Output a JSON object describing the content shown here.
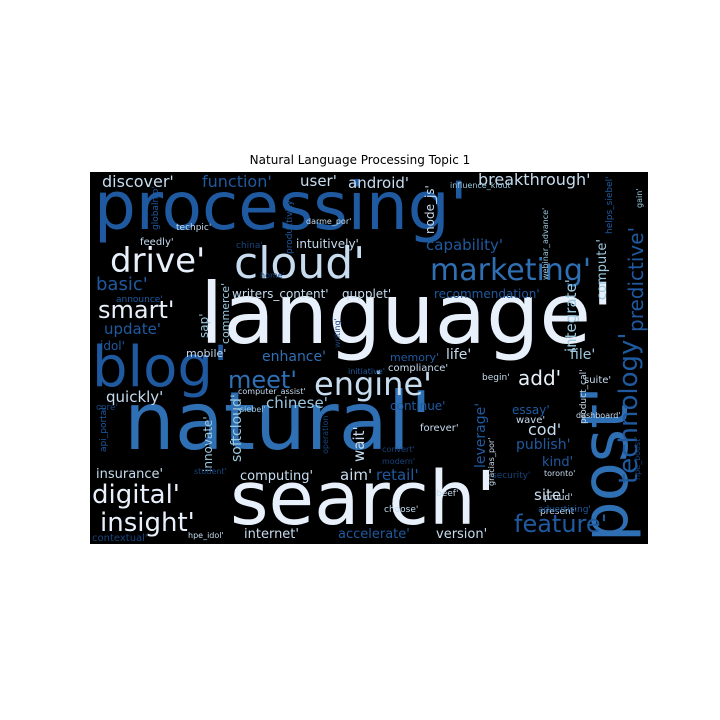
{
  "title": "Natural Language Processing Topic 1",
  "words": [
    "processing'",
    "language'",
    "natural'",
    "search'",
    "post'",
    "blog'",
    "cloud'",
    "marketing'",
    "technology'",
    "engine'",
    "drive'",
    "feature'",
    "digital'",
    "insight'",
    "smart'",
    "meet'",
    "predictive'",
    "discover'",
    "function'",
    "user'",
    "android'",
    "breakthrough'",
    "basic'",
    "update'",
    "capability'",
    "compute'",
    "integrate'",
    "add'",
    "life'",
    "enhance'",
    "quickly'",
    "chinese'",
    "cod'",
    "essay'",
    "kind'",
    "publish'",
    "leverage'",
    "site'",
    "aim'",
    "retail'",
    "wait'",
    "computing'",
    "insurance'",
    "softcloud'",
    "innovate'",
    "internet'",
    "accelerate'",
    "version'",
    "mobile'",
    "idol'",
    "sap'",
    "commerce'",
    "file'",
    "memory'",
    "continue'",
    "recommendation'",
    "writers_content'",
    "qupplet'",
    "intuitively'",
    "feedly'",
    "globalnlp'",
    "techpic'",
    "darme_por'",
    "productivity'",
    "node_js'",
    "influence_klout'",
    "gain'",
    "helps_siebel'",
    "webinar_advance'",
    "china'",
    "home'",
    "announce'",
    "computer_assist'",
    "compliance'",
    "begin'",
    "suite'",
    "product_cal'",
    "writing'",
    "core'",
    "api_portal'",
    "initiative'",
    "forever'",
    "wave'",
    "convert'",
    "modern'",
    "toronto'",
    "dashboard'",
    "proud'",
    "present'",
    "advertising'",
    "security'",
    "gracias_por'",
    "hpe_boost'",
    "beef'",
    "choose'",
    "contextual'",
    "hpe_idol'",
    "siebel'",
    "operation'",
    "student'"
  ]
}
